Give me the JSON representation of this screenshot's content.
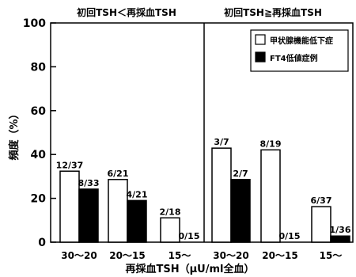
{
  "chart_data": {
    "type": "bar",
    "ylabel": "頻度（%）",
    "xlabel": "再採血TSH（μU/ml全血）",
    "ylim": [
      0,
      100
    ],
    "yticks": [
      0,
      20,
      40,
      60,
      80,
      100
    ],
    "grid": false,
    "legend_position": "top-right (inside right panel)",
    "legend": [
      {
        "label": "甲状腺機能低下症",
        "color": "#ffffff"
      },
      {
        "label": "FT4低値症例",
        "color": "#000000"
      }
    ],
    "panels": [
      {
        "title": "初回TSH＜再採血TSH",
        "categories": [
          "30〜20",
          "20〜15",
          "15〜"
        ],
        "series": [
          {
            "name": "甲状腺機能低下症",
            "color": "#ffffff",
            "values": [
              32.4,
              28.6,
              11.1
            ],
            "labels": [
              "12/37",
              "6/21",
              "2/18"
            ]
          },
          {
            "name": "FT4低値症例",
            "color": "#000000",
            "values": [
              24.2,
              19.0,
              0
            ],
            "labels": [
              "8/33",
              "4/21",
              "0/15"
            ]
          }
        ]
      },
      {
        "title": "初回TSH≧再採血TSH",
        "categories": [
          "30〜20",
          "20〜15",
          "15〜"
        ],
        "series": [
          {
            "name": "甲状腺機能低下症",
            "color": "#ffffff",
            "values": [
              42.9,
              42.1,
              16.2
            ],
            "labels": [
              "3/7",
              "8/19",
              "6/37"
            ]
          },
          {
            "name": "FT4低値症例",
            "color": "#000000",
            "values": [
              28.6,
              0,
              2.8
            ],
            "labels": [
              "2/7",
              "0/15",
              "1/36"
            ]
          }
        ]
      }
    ]
  }
}
